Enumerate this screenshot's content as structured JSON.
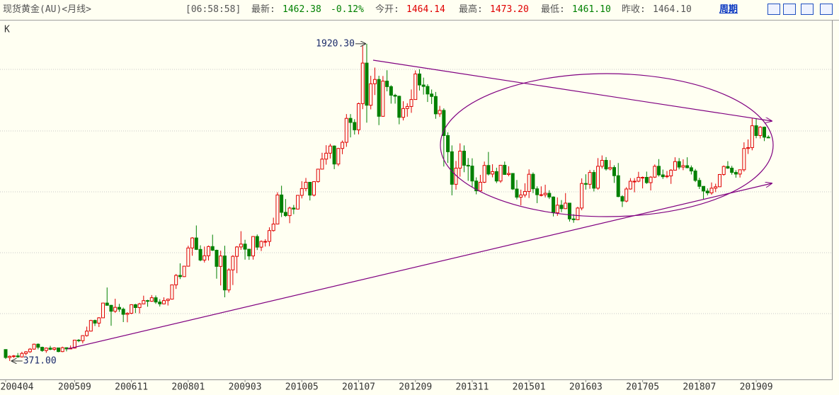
{
  "header": {
    "title": "现货黄金(AU)<月线>",
    "time": "[06:58:58]",
    "fields": [
      {
        "label": "最新:",
        "value": "1462.38"
      },
      {
        "value": "-0.12%"
      },
      {
        "label": "今开:",
        "value": "1464.14"
      },
      {
        "label": "最高:",
        "value": "1473.20"
      },
      {
        "label": "最低:",
        "value": "1461.10"
      },
      {
        "label": "昨收:",
        "value": "1464.10"
      }
    ],
    "period": "周期"
  },
  "chart_data": {
    "type": "candlestick",
    "label": "K",
    "up_color": "#e00000",
    "down_color": "#008000",
    "ylim": [
      281,
      2020
    ],
    "extremes": [
      {
        "value": 1920.3,
        "label": "1920.30",
        "index": 89
      },
      {
        "value": 371,
        "label": "371.00",
        "index": 1
      }
    ],
    "categories": [
      "200404",
      null,
      null,
      null,
      null,
      null,
      null,
      null,
      null,
      null,
      null,
      null,
      null,
      null,
      null,
      null,
      null,
      "200509",
      null,
      null,
      null,
      null,
      null,
      null,
      null,
      null,
      null,
      null,
      null,
      null,
      null,
      "200611",
      null,
      null,
      null,
      null,
      null,
      null,
      null,
      null,
      null,
      null,
      null,
      null,
      null,
      "200801",
      null,
      null,
      null,
      null,
      null,
      null,
      null,
      null,
      null,
      null,
      null,
      null,
      null,
      "200903",
      null,
      null,
      null,
      null,
      null,
      null,
      null,
      null,
      null,
      null,
      null,
      null,
      null,
      "201005",
      null,
      null,
      null,
      null,
      null,
      null,
      null,
      null,
      null,
      null,
      null,
      null,
      null,
      "201107",
      null,
      null,
      null,
      null,
      null,
      null,
      null,
      null,
      null,
      null,
      null,
      null,
      null,
      "201209",
      null,
      null,
      null,
      null,
      null,
      null,
      null,
      null,
      null,
      null,
      null,
      null,
      null,
      "201311",
      null,
      null,
      null,
      null,
      null,
      null,
      null,
      null,
      null,
      null,
      null,
      null,
      null,
      "201501",
      null,
      null,
      null,
      null,
      null,
      null,
      null,
      null,
      null,
      null,
      null,
      null,
      null,
      "201603",
      null,
      null,
      null,
      null,
      null,
      null,
      null,
      null,
      null,
      null,
      null,
      null,
      null,
      "201705",
      null,
      null,
      null,
      null,
      null,
      null,
      null,
      null,
      null,
      null,
      null,
      null,
      null,
      "201807",
      null,
      null,
      null,
      null,
      null,
      null,
      null,
      null,
      null,
      null,
      null,
      null,
      null,
      "201909",
      null,
      null,
      null
    ],
    "ohlc": [
      [
        427,
        427,
        381,
        388
      ],
      [
        388,
        398,
        371,
        394
      ],
      [
        394,
        400,
        386,
        396
      ],
      [
        396,
        410,
        387,
        391
      ],
      [
        391,
        416,
        388,
        408
      ],
      [
        408,
        419,
        399,
        416
      ],
      [
        416,
        434,
        411,
        429
      ],
      [
        429,
        456,
        426,
        453
      ],
      [
        453,
        457,
        428,
        438
      ],
      [
        438,
        441,
        416,
        422
      ],
      [
        422,
        437,
        411,
        434
      ],
      [
        434,
        445,
        424,
        428
      ],
      [
        428,
        438,
        421,
        435
      ],
      [
        435,
        436,
        414,
        417
      ],
      [
        417,
        441,
        414,
        436
      ],
      [
        436,
        437,
        418,
        430
      ],
      [
        430,
        447,
        429,
        434
      ],
      [
        434,
        474,
        432,
        473
      ],
      [
        473,
        478,
        463,
        470
      ],
      [
        470,
        497,
        457,
        495
      ],
      [
        495,
        539,
        490,
        517
      ],
      [
        517,
        572,
        515,
        569
      ],
      [
        569,
        573,
        542,
        556
      ],
      [
        556,
        585,
        537,
        582
      ],
      [
        582,
        654,
        582,
        654
      ],
      [
        654,
        730,
        641,
        643
      ],
      [
        643,
        645,
        543,
        614
      ],
      [
        614,
        675,
        606,
        633
      ],
      [
        633,
        650,
        611,
        624
      ],
      [
        624,
        632,
        561,
        599
      ],
      [
        599,
        609,
        560,
        604
      ],
      [
        604,
        648,
        600,
        646
      ],
      [
        646,
        650,
        605,
        632
      ],
      [
        632,
        655,
        603,
        650
      ],
      [
        650,
        690,
        648,
        666
      ],
      [
        666,
        670,
        636,
        663
      ],
      [
        663,
        693,
        660,
        680
      ],
      [
        680,
        691,
        650,
        659
      ],
      [
        659,
        673,
        637,
        650
      ],
      [
        650,
        682,
        648,
        666
      ],
      [
        666,
        676,
        642,
        673
      ],
      [
        673,
        744,
        671,
        743
      ],
      [
        743,
        796,
        723,
        789
      ],
      [
        789,
        848,
        771,
        783
      ],
      [
        783,
        836,
        781,
        834
      ],
      [
        834,
        934,
        832,
        923
      ],
      [
        923,
        976,
        885,
        972
      ],
      [
        972,
        1033,
        913,
        916
      ],
      [
        916,
        936,
        858,
        864
      ],
      [
        864,
        930,
        852,
        885
      ],
      [
        885,
        935,
        862,
        930
      ],
      [
        930,
        988,
        908,
        912
      ],
      [
        912,
        915,
        773,
        833
      ],
      [
        833,
        910,
        740,
        884
      ],
      [
        884,
        934,
        682,
        718
      ],
      [
        718,
        824,
        705,
        816
      ],
      [
        816,
        888,
        742,
        882
      ],
      [
        882,
        932,
        800,
        928
      ],
      [
        928,
        1005,
        914,
        942
      ],
      [
        942,
        963,
        866,
        917
      ],
      [
        917,
        917,
        865,
        884
      ],
      [
        884,
        980,
        866,
        979
      ],
      [
        979,
        989,
        913,
        927
      ],
      [
        927,
        960,
        908,
        955
      ],
      [
        955,
        966,
        930,
        955
      ],
      [
        955,
        1024,
        932,
        1008
      ],
      [
        1008,
        1071,
        1003,
        1040
      ],
      [
        1040,
        1195,
        1039,
        1182
      ],
      [
        1182,
        1227,
        1074,
        1097
      ],
      [
        1097,
        1162,
        1075,
        1081
      ],
      [
        1081,
        1125,
        1044,
        1118
      ],
      [
        1118,
        1133,
        1088,
        1113
      ],
      [
        1113,
        1181,
        1112,
        1180
      ],
      [
        1180,
        1249,
        1165,
        1213
      ],
      [
        1213,
        1265,
        1200,
        1244
      ],
      [
        1244,
        1245,
        1155,
        1181
      ],
      [
        1181,
        1249,
        1175,
        1247
      ],
      [
        1247,
        1308,
        1242,
        1308
      ],
      [
        1308,
        1388,
        1314,
        1357
      ],
      [
        1357,
        1425,
        1330,
        1386
      ],
      [
        1386,
        1432,
        1360,
        1421
      ],
      [
        1421,
        1424,
        1308,
        1333
      ],
      [
        1333,
        1412,
        1323,
        1409
      ],
      [
        1409,
        1448,
        1381,
        1439
      ],
      [
        1439,
        1577,
        1417,
        1556
      ],
      [
        1556,
        1577,
        1463,
        1536
      ],
      [
        1536,
        1552,
        1477,
        1500
      ],
      [
        1500,
        1633,
        1478,
        1628
      ],
      [
        1628,
        1913,
        1601,
        1826
      ],
      [
        1826,
        1920.3,
        1535,
        1620
      ],
      [
        1620,
        1764,
        1600,
        1725
      ],
      [
        1725,
        1804,
        1670,
        1746
      ],
      [
        1746,
        1764,
        1523,
        1566
      ],
      [
        1566,
        1763,
        1564,
        1738
      ],
      [
        1738,
        1791,
        1688,
        1711
      ],
      [
        1711,
        1718,
        1628,
        1669
      ],
      [
        1669,
        1676,
        1628,
        1664
      ],
      [
        1664,
        1667,
        1527,
        1561
      ],
      [
        1561,
        1640,
        1546,
        1604
      ],
      [
        1604,
        1630,
        1564,
        1614
      ],
      [
        1614,
        1697,
        1583,
        1648
      ],
      [
        1648,
        1790,
        1648,
        1773
      ],
      [
        1773,
        1796,
        1692,
        1719
      ],
      [
        1719,
        1755,
        1672,
        1712
      ],
      [
        1712,
        1723,
        1636,
        1675
      ],
      [
        1675,
        1697,
        1626,
        1663
      ],
      [
        1663,
        1685,
        1554,
        1578
      ],
      [
        1578,
        1617,
        1563,
        1595
      ],
      [
        1595,
        1605,
        1321,
        1472
      ],
      [
        1472,
        1488,
        1338,
        1393
      ],
      [
        1393,
        1424,
        1180,
        1234
      ],
      [
        1234,
        1348,
        1208,
        1313
      ],
      [
        1313,
        1434,
        1271,
        1396
      ],
      [
        1396,
        1424,
        1293,
        1327
      ],
      [
        1327,
        1362,
        1251,
        1323
      ],
      [
        1323,
        1361,
        1221,
        1250
      ],
      [
        1250,
        1268,
        1185,
        1202
      ],
      [
        1202,
        1280,
        1202,
        1244
      ],
      [
        1244,
        1345,
        1240,
        1326
      ],
      [
        1326,
        1392,
        1277,
        1284
      ],
      [
        1284,
        1332,
        1268,
        1296
      ],
      [
        1296,
        1315,
        1240,
        1250
      ],
      [
        1250,
        1326,
        1241,
        1327
      ],
      [
        1327,
        1345,
        1280,
        1282
      ],
      [
        1282,
        1322,
        1273,
        1287
      ],
      [
        1287,
        1287,
        1206,
        1211
      ],
      [
        1211,
        1255,
        1160,
        1171
      ],
      [
        1171,
        1208,
        1131,
        1182
      ],
      [
        1182,
        1239,
        1170,
        1199
      ],
      [
        1199,
        1307,
        1167,
        1283
      ],
      [
        1283,
        1292,
        1191,
        1212
      ],
      [
        1212,
        1224,
        1142,
        1183
      ],
      [
        1183,
        1224,
        1175,
        1183
      ],
      [
        1183,
        1232,
        1170,
        1190
      ],
      [
        1190,
        1205,
        1162,
        1172
      ],
      [
        1172,
        1175,
        1077,
        1095
      ],
      [
        1095,
        1170,
        1080,
        1132
      ],
      [
        1132,
        1157,
        1098,
        1115
      ],
      [
        1115,
        1191,
        1113,
        1142
      ],
      [
        1142,
        1142,
        1052,
        1065
      ],
      [
        1065,
        1088,
        1046,
        1061
      ],
      [
        1061,
        1124,
        1061,
        1118
      ],
      [
        1118,
        1263,
        1107,
        1238
      ],
      [
        1238,
        1283,
        1208,
        1234
      ],
      [
        1234,
        1304,
        1212,
        1292
      ],
      [
        1292,
        1304,
        1199,
        1215
      ],
      [
        1215,
        1362,
        1207,
        1322
      ],
      [
        1322,
        1375,
        1311,
        1351
      ],
      [
        1351,
        1367,
        1301,
        1309
      ],
      [
        1309,
        1352,
        1302,
        1316
      ],
      [
        1316,
        1327,
        1241,
        1276
      ],
      [
        1276,
        1338,
        1171,
        1174
      ],
      [
        1174,
        1181,
        1123,
        1152
      ],
      [
        1152,
        1220,
        1146,
        1211
      ],
      [
        1211,
        1264,
        1208,
        1249
      ],
      [
        1249,
        1264,
        1195,
        1249
      ],
      [
        1249,
        1295,
        1244,
        1268
      ],
      [
        1268,
        1272,
        1214,
        1268
      ],
      [
        1268,
        1296,
        1236,
        1242
      ],
      [
        1242,
        1274,
        1204,
        1269
      ],
      [
        1269,
        1331,
        1265,
        1322
      ],
      [
        1322,
        1357,
        1272,
        1280
      ],
      [
        1280,
        1306,
        1260,
        1271
      ],
      [
        1271,
        1299,
        1264,
        1275
      ],
      [
        1275,
        1308,
        1236,
        1303
      ],
      [
        1303,
        1366,
        1302,
        1345
      ],
      [
        1345,
        1362,
        1307,
        1318
      ],
      [
        1318,
        1356,
        1303,
        1325
      ],
      [
        1325,
        1366,
        1312,
        1315
      ],
      [
        1315,
        1326,
        1282,
        1299
      ],
      [
        1299,
        1309,
        1245,
        1253
      ],
      [
        1253,
        1266,
        1211,
        1224
      ],
      [
        1224,
        1225,
        1160,
        1201
      ],
      [
        1201,
        1214,
        1180,
        1192
      ],
      [
        1192,
        1243,
        1183,
        1215
      ],
      [
        1215,
        1237,
        1196,
        1222
      ],
      [
        1222,
        1284,
        1221,
        1282
      ],
      [
        1282,
        1326,
        1276,
        1321
      ],
      [
        1321,
        1347,
        1309,
        1313
      ],
      [
        1313,
        1324,
        1281,
        1292
      ],
      [
        1292,
        1303,
        1266,
        1284
      ],
      [
        1284,
        1306,
        1267,
        1305
      ],
      [
        1305,
        1439,
        1296,
        1409
      ],
      [
        1409,
        1453,
        1382,
        1413
      ],
      [
        1413,
        1555,
        1400,
        1520
      ],
      [
        1520,
        1557,
        1459,
        1472
      ],
      [
        1472,
        1518,
        1458,
        1513
      ],
      [
        1513,
        1516,
        1445,
        1464
      ],
      [
        1464,
        1473.2,
        1461.1,
        1462.38
      ]
    ]
  }
}
